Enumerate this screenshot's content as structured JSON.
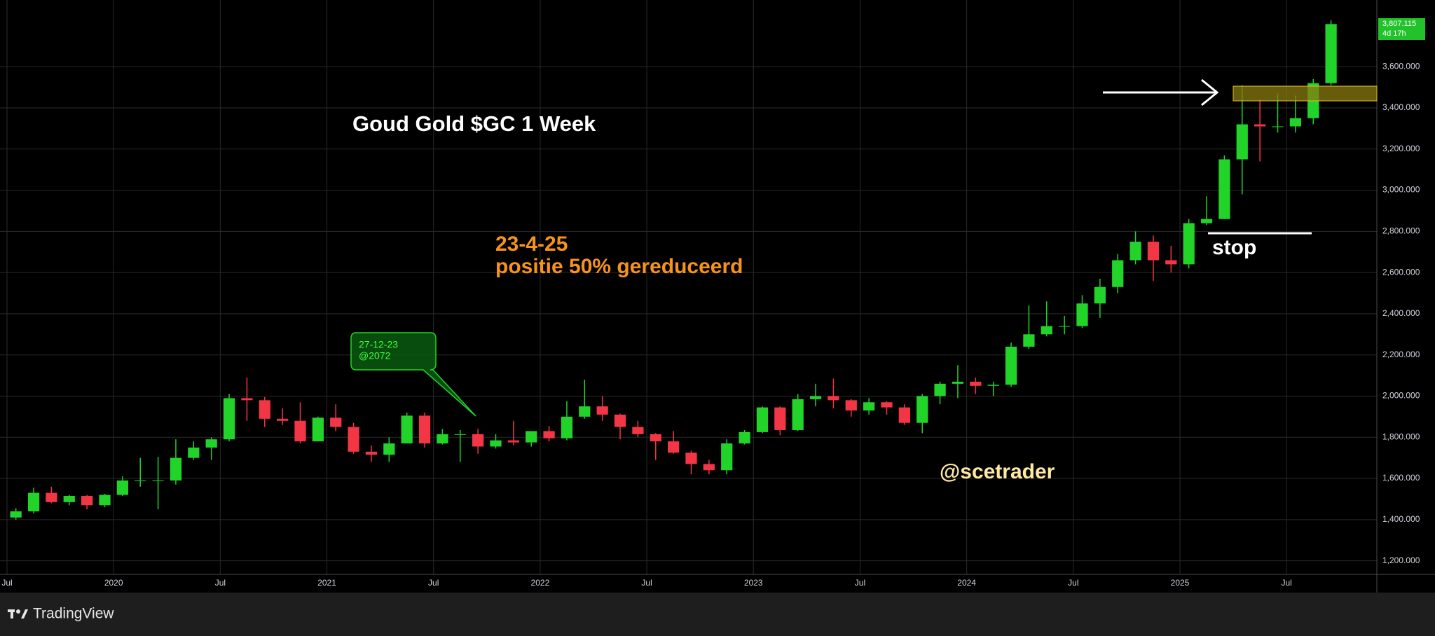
{
  "chart_data": {
    "type": "candlestick",
    "title": "Goud Gold $GC 1 Week",
    "annotations": {
      "note_date": "23-4-25",
      "note_text": "positie 50% gereduceerd",
      "callout_date": "27-12-23",
      "callout_price": "@2072",
      "stop": "stop",
      "author": "@scetrader"
    },
    "last_price": {
      "value": 3807.115,
      "label": "3,807.115"
    },
    "countdown": "4d 17h",
    "brand": "TradingView",
    "up_color": "#22d32a",
    "down_color": "#f23645",
    "grid": true,
    "x": [
      "2019-07",
      "2019-08",
      "2019-09",
      "2019-10",
      "2019-11",
      "2019-12",
      "2020-01",
      "2020-02",
      "2020-03",
      "2020-04",
      "2020-05",
      "2020-06",
      "2020-07",
      "2020-08",
      "2020-09",
      "2020-10",
      "2020-11",
      "2020-12",
      "2021-01",
      "2021-02",
      "2021-03",
      "2021-04",
      "2021-05",
      "2021-06",
      "2021-07",
      "2021-08",
      "2021-09",
      "2021-10",
      "2021-11",
      "2021-12",
      "2022-01",
      "2022-02",
      "2022-03",
      "2022-04",
      "2022-05",
      "2022-06",
      "2022-07",
      "2022-08",
      "2022-09",
      "2022-10",
      "2022-11",
      "2022-12",
      "2023-01",
      "2023-02",
      "2023-03",
      "2023-04",
      "2023-05",
      "2023-06",
      "2023-07",
      "2023-08",
      "2023-09",
      "2023-10",
      "2023-11",
      "2023-12",
      "2024-01",
      "2024-02",
      "2024-03",
      "2024-04",
      "2024-05",
      "2024-06",
      "2024-07",
      "2024-08",
      "2024-09",
      "2024-10",
      "2024-11",
      "2024-12",
      "2025-01",
      "2025-02",
      "2025-03",
      "2025-04",
      "2025-05",
      "2025-06",
      "2025-07",
      "2025-08",
      "2025-09"
    ],
    "open": [
      1410,
      1440,
      1530,
      1485,
      1515,
      1470,
      1520,
      1590,
      1590,
      1590,
      1700,
      1750,
      1790,
      1990,
      1980,
      1890,
      1880,
      1780,
      1895,
      1850,
      1730,
      1715,
      1770,
      1905,
      1770,
      1815,
      1815,
      1755,
      1785,
      1775,
      1830,
      1795,
      1900,
      1950,
      1910,
      1850,
      1815,
      1780,
      1725,
      1670,
      1640,
      1770,
      1825,
      1945,
      1835,
      1985,
      2000,
      1980,
      1930,
      1970,
      1945,
      1870,
      2000,
      2060,
      2070,
      2050,
      2055,
      2240,
      2300,
      2340,
      2340,
      2450,
      2530,
      2660,
      2750,
      2660,
      2640,
      2840,
      2860,
      3150,
      3320,
      3310,
      3310,
      3350,
      3520
    ],
    "high": [
      1455,
      1555,
      1560,
      1520,
      1520,
      1525,
      1610,
      1700,
      1705,
      1790,
      1780,
      1800,
      2010,
      2090,
      1995,
      1940,
      1970,
      1900,
      1960,
      1870,
      1760,
      1800,
      1920,
      1920,
      1840,
      1835,
      1840,
      1815,
      1880,
      1830,
      1855,
      1975,
      2080,
      2000,
      1915,
      1880,
      1820,
      1830,
      1735,
      1690,
      1790,
      1835,
      1950,
      1950,
      2010,
      2060,
      2085,
      1985,
      1990,
      1975,
      1960,
      2010,
      2070,
      2150,
      2090,
      2070,
      2260,
      2440,
      2460,
      2390,
      2490,
      2570,
      2690,
      2800,
      2780,
      2730,
      2860,
      2970,
      3170,
      3510,
      3440,
      3470,
      3460,
      3540,
      3825
    ],
    "low": [
      1400,
      1430,
      1480,
      1470,
      1450,
      1460,
      1515,
      1560,
      1450,
      1570,
      1690,
      1690,
      1780,
      1880,
      1850,
      1860,
      1770,
      1780,
      1830,
      1720,
      1680,
      1680,
      1770,
      1750,
      1765,
      1680,
      1720,
      1745,
      1760,
      1755,
      1780,
      1785,
      1890,
      1880,
      1790,
      1800,
      1690,
      1720,
      1620,
      1620,
      1620,
      1765,
      1820,
      1810,
      1830,
      1950,
      1940,
      1900,
      1910,
      1910,
      1860,
      1820,
      1960,
      1990,
      2010,
      2000,
      2045,
      2230,
      2290,
      2300,
      2330,
      2380,
      2500,
      2640,
      2560,
      2600,
      2620,
      2830,
      2860,
      2980,
      3140,
      3280,
      3280,
      3320,
      3510
    ],
    "close": [
      1440,
      1530,
      1485,
      1515,
      1470,
      1520,
      1590,
      1590,
      1590,
      1700,
      1750,
      1790,
      1990,
      1980,
      1890,
      1880,
      1780,
      1895,
      1850,
      1730,
      1715,
      1770,
      1905,
      1770,
      1815,
      1815,
      1755,
      1785,
      1775,
      1830,
      1795,
      1900,
      1950,
      1910,
      1850,
      1815,
      1780,
      1725,
      1670,
      1640,
      1770,
      1825,
      1945,
      1835,
      1985,
      2000,
      1980,
      1930,
      1970,
      1945,
      1870,
      2000,
      2060,
      2070,
      2050,
      2055,
      2240,
      2300,
      2340,
      2340,
      2450,
      2530,
      2660,
      2750,
      2660,
      2640,
      2840,
      2860,
      3150,
      3320,
      3310,
      3310,
      3350,
      3520,
      3807.115
    ],
    "xlim": [
      "2019-07",
      "2025-12"
    ],
    "xticks": [
      {
        "value": "2019-07",
        "label": "Jul"
      },
      {
        "value": "2020-01",
        "label": "2020"
      },
      {
        "value": "2020-07",
        "label": "Jul"
      },
      {
        "value": "2021-01",
        "label": "2021"
      },
      {
        "value": "2021-07",
        "label": "Jul"
      },
      {
        "value": "2022-01",
        "label": "2022"
      },
      {
        "value": "2022-07",
        "label": "Jul"
      },
      {
        "value": "2023-01",
        "label": "2023"
      },
      {
        "value": "2023-07",
        "label": "Jul"
      },
      {
        "value": "2024-01",
        "label": "2024"
      },
      {
        "value": "2024-07",
        "label": "Jul"
      },
      {
        "value": "2025-01",
        "label": "2025"
      },
      {
        "value": "2025-07",
        "label": "Jul"
      }
    ],
    "ylim": [
      1134,
      3924
    ],
    "yticks": [
      {
        "value": 1200,
        "label": "1,200.000"
      },
      {
        "value": 1400,
        "label": "1,400.000"
      },
      {
        "value": 1600,
        "label": "1,600.000"
      },
      {
        "value": 1800,
        "label": "1,800.000"
      },
      {
        "value": 2000,
        "label": "2,000.000"
      },
      {
        "value": 2200,
        "label": "2,200.000"
      },
      {
        "value": 2400,
        "label": "2,400.000"
      },
      {
        "value": 2600,
        "label": "2,600.000"
      },
      {
        "value": 2800,
        "label": "2,800.000"
      },
      {
        "value": 3000,
        "label": "3,000.000"
      },
      {
        "value": 3200,
        "label": "3,200.000"
      },
      {
        "value": 3400,
        "label": "3,400.000"
      },
      {
        "value": 3600,
        "label": "3,600.000"
      }
    ]
  }
}
